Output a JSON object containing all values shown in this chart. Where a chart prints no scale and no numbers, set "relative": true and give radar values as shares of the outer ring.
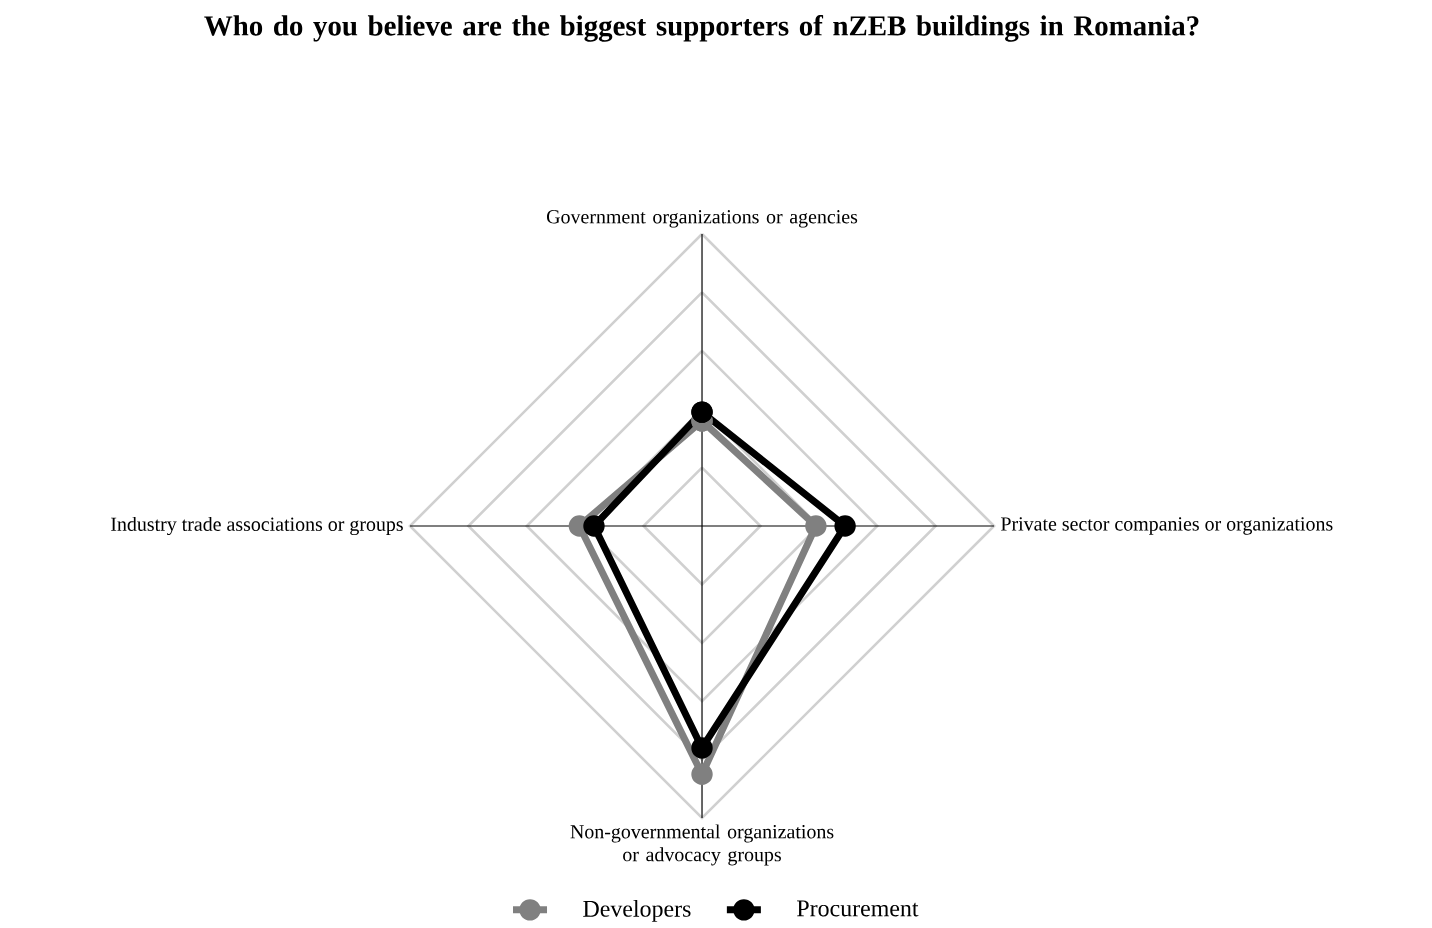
{
  "chart_data": {
    "type": "radar",
    "title": "Who do you believe are the biggest supporters of nZEB buildings in Romania?",
    "categories": [
      "Government organizations or agencies",
      "Private sector companies or organizations",
      "Non-governmental organizations or advocacy groups",
      "Industry trade associations or groups"
    ],
    "series": [
      {
        "name": "Developers",
        "color": "#808080",
        "values": [
          0.36,
          0.39,
          0.85,
          0.42
        ]
      },
      {
        "name": "Procurement",
        "color": "#000000",
        "values": [
          0.39,
          0.49,
          0.76,
          0.37
        ]
      }
    ],
    "relative": true,
    "grid": true,
    "legend": "bottom",
    "marker": "circle"
  }
}
